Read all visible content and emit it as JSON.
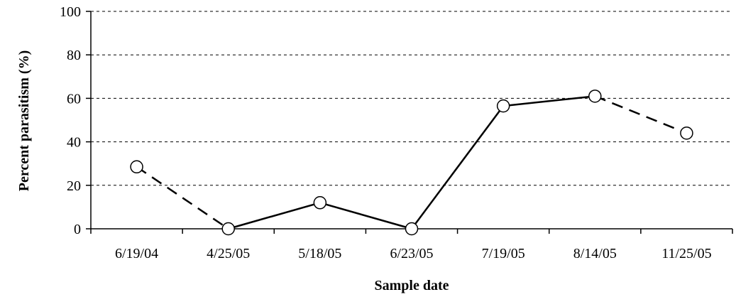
{
  "chart_data": {
    "type": "line",
    "xlabel": "Sample date",
    "ylabel": "Percent parasitism (%)",
    "ylim": [
      0,
      100
    ],
    "yticks": [
      0,
      20,
      40,
      60,
      80,
      100
    ],
    "ytick_labels": [
      "0",
      "20",
      "40",
      "60",
      "80",
      "100"
    ],
    "categories": [
      "6/19/04",
      "4/25/05",
      "5/18/05",
      "6/23/05",
      "7/19/05",
      "8/14/05",
      "11/25/05"
    ],
    "values": [
      28.5,
      0,
      12,
      0,
      56.5,
      61,
      44
    ],
    "segment_styles": [
      "dashed",
      "solid",
      "solid",
      "solid",
      "solid",
      "dashed"
    ],
    "grid": "horizontal dashed",
    "marker": "open circle",
    "colors": {
      "line": "#000000",
      "marker_fill": "#ffffff",
      "grid": "#000000"
    }
  }
}
